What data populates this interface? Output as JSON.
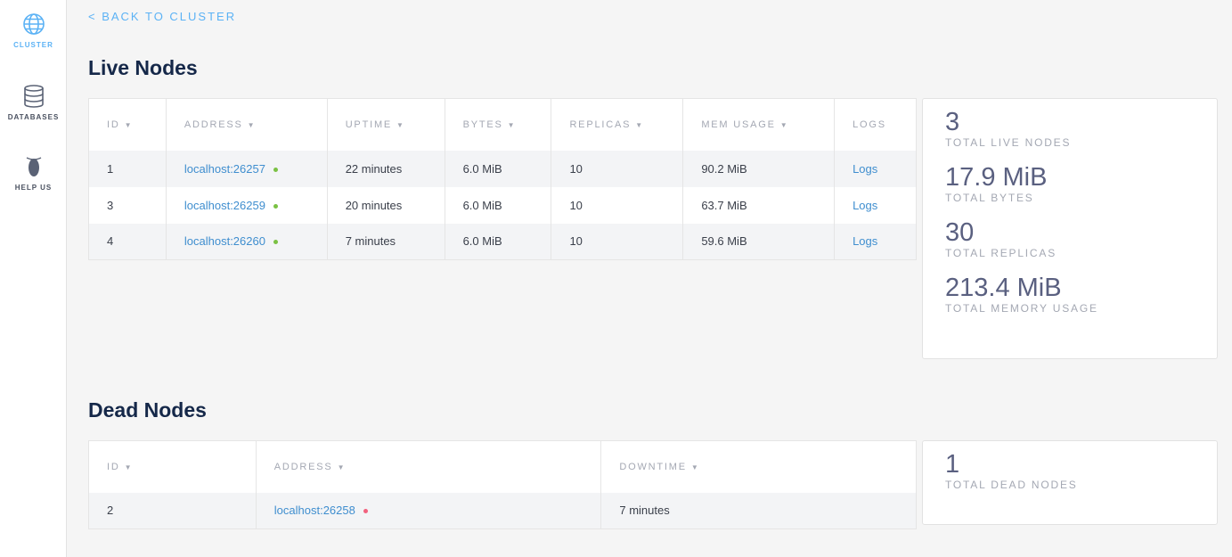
{
  "sidebar": {
    "items": [
      {
        "label": "CLUSTER",
        "icon": "globe-icon",
        "active": true
      },
      {
        "label": "DATABASES",
        "icon": "database-icon"
      },
      {
        "label": "HELP US",
        "icon": "bug-icon"
      }
    ]
  },
  "back_link": "< BACK TO CLUSTER",
  "live": {
    "title": "Live Nodes",
    "headers": [
      "ID",
      "ADDRESS",
      "UPTIME",
      "BYTES",
      "REPLICAS",
      "MEM USAGE",
      "LOGS"
    ],
    "rows": [
      {
        "id": "1",
        "address": "localhost:26257",
        "uptime": "22 minutes",
        "bytes": "6.0 MiB",
        "replicas": "10",
        "mem": "90.2 MiB",
        "logs": "Logs"
      },
      {
        "id": "3",
        "address": "localhost:26259",
        "uptime": "20 minutes",
        "bytes": "6.0 MiB",
        "replicas": "10",
        "mem": "63.7 MiB",
        "logs": "Logs"
      },
      {
        "id": "4",
        "address": "localhost:26260",
        "uptime": "7 minutes",
        "bytes": "6.0 MiB",
        "replicas": "10",
        "mem": "59.6 MiB",
        "logs": "Logs"
      }
    ],
    "stats": [
      {
        "value": "3",
        "label": "TOTAL LIVE NODES"
      },
      {
        "value": "17.9 MiB",
        "label": "TOTAL BYTES"
      },
      {
        "value": "30",
        "label": "TOTAL REPLICAS"
      },
      {
        "value": "213.4 MiB",
        "label": "TOTAL MEMORY USAGE"
      }
    ]
  },
  "dead": {
    "title": "Dead Nodes",
    "headers": [
      "ID",
      "ADDRESS",
      "DOWNTIME"
    ],
    "rows": [
      {
        "id": "2",
        "address": "localhost:26258",
        "downtime": "7 minutes"
      }
    ],
    "stats": [
      {
        "value": "1",
        "label": "TOTAL DEAD NODES"
      }
    ]
  },
  "colors": {
    "accent": "#5bb2f5",
    "link": "#3f8ecf",
    "live": "#7ac143",
    "dead": "#f2627e"
  }
}
